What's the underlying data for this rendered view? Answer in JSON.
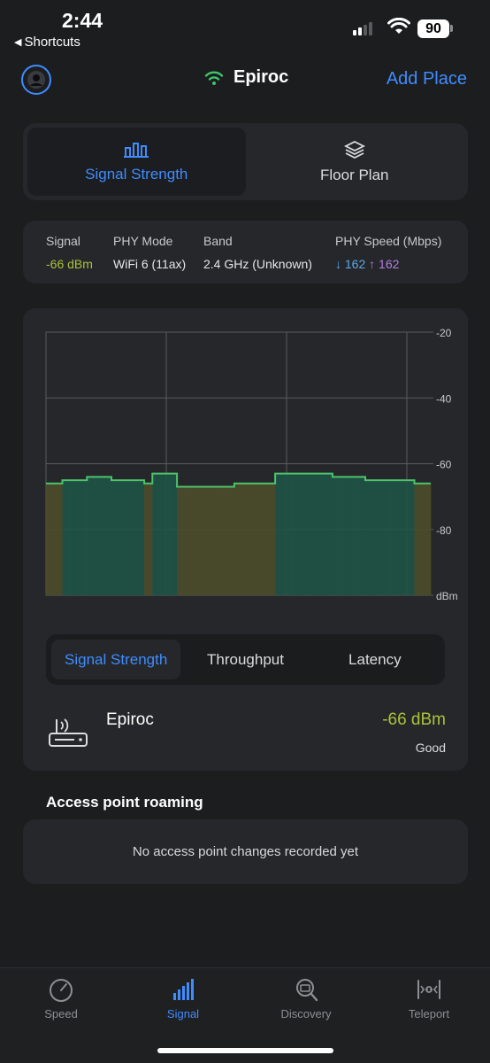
{
  "status": {
    "time": "2:44",
    "back_label": "Shortcuts",
    "battery": "90"
  },
  "header": {
    "title": "Epiroc",
    "add_place": "Add Place"
  },
  "view_tabs": [
    {
      "label": "Signal Strength",
      "icon": "signal-strength-icon",
      "active": true
    },
    {
      "label": "Floor Plan",
      "icon": "layers-icon",
      "active": false
    }
  ],
  "info": {
    "signal_label": "Signal",
    "signal_value": "-66 dBm",
    "phy_mode_label": "PHY Mode",
    "phy_mode_value": "WiFi 6 (11ax)",
    "band_label": "Band",
    "band_value": "2.4 GHz (Unknown)",
    "phy_speed_label": "PHY Speed (Mbps)",
    "down_value": "162",
    "up_value": "162"
  },
  "chart_data": {
    "type": "area",
    "y_ticks": [
      "-20",
      "-40",
      "-60",
      "-80",
      "dBm"
    ],
    "ylim": [
      -100,
      -20
    ],
    "grid": true,
    "series": [
      {
        "values": [
          -66,
          -66,
          -65,
          -65,
          -65,
          -64,
          -64,
          -64,
          -65,
          -65,
          -65,
          -65,
          -66,
          -63,
          -63,
          -63,
          -67,
          -67,
          -67,
          -67,
          -67,
          -67,
          -67,
          -66,
          -66,
          -66,
          -66,
          -66,
          -63,
          -63,
          -63,
          -63,
          -63,
          -63,
          -63,
          -64,
          -64,
          -64,
          -64,
          -65,
          -65,
          -65,
          -65,
          -65,
          -65,
          -66,
          -66
        ]
      }
    ],
    "colors": {
      "line": "#4cc46a",
      "good_fill": "#1f5446",
      "fair_fill": "#4d4d2a"
    }
  },
  "metric_tabs": [
    {
      "label": "Signal Strength",
      "active": true
    },
    {
      "label": "Throughput",
      "active": false
    },
    {
      "label": "Latency",
      "active": false
    }
  ],
  "network": {
    "name": "Epiroc",
    "dbm": "-66 dBm",
    "quality": "Good",
    "icon": "router-icon"
  },
  "roaming": {
    "title": "Access point roaming",
    "empty_text": "No access point changes recorded yet"
  },
  "tabbar": [
    {
      "label": "Speed",
      "icon": "speedometer-icon",
      "active": false
    },
    {
      "label": "Signal",
      "icon": "signal-bars-icon",
      "active": true
    },
    {
      "label": "Discovery",
      "icon": "discovery-icon",
      "active": false
    },
    {
      "label": "Teleport",
      "icon": "teleport-icon",
      "active": false
    }
  ]
}
